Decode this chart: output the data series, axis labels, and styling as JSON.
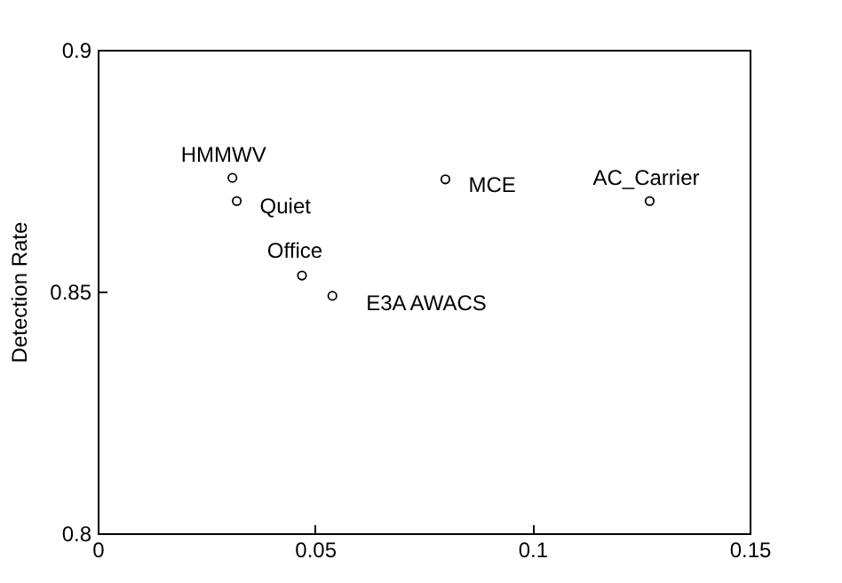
{
  "chart_data": {
    "type": "scatter",
    "ylabel": "Detection Rate",
    "x": [
      0.031,
      0.032,
      0.047,
      0.054,
      0.08,
      0.127
    ],
    "values": [
      0.8735,
      0.8687,
      0.8533,
      0.8491,
      0.8732,
      0.8687
    ],
    "color": "#000000",
    "marker": "circle",
    "grid": false,
    "xlim": [
      0,
      0.15
    ],
    "xticks": [
      0,
      0.05,
      0.1,
      0.15
    ],
    "ylim": [
      0.8,
      0.9
    ],
    "yticks": [
      0.8,
      0.85,
      0.9
    ],
    "annotations": [
      {
        "text": "HMMWV",
        "x": 0.031,
        "y": 0.8735
      },
      {
        "text": "Quiet",
        "x": 0.032,
        "y": 0.8687
      },
      {
        "text": "Office",
        "x": 0.047,
        "y": 0.8533
      },
      {
        "text": "E3A AWACS",
        "x": 0.054,
        "y": 0.8491
      },
      {
        "text": "MCE",
        "x": 0.08,
        "y": 0.8732
      },
      {
        "text": "AC_Carrier",
        "x": 0.127,
        "y": 0.8687
      }
    ]
  }
}
